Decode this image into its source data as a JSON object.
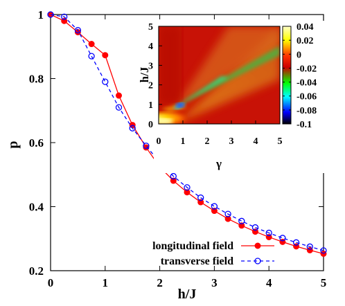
{
  "chart_data": [
    {
      "type": "line",
      "xlabel": "h/J",
      "ylabel": "p",
      "xlim": [
        0,
        5
      ],
      "ylim": [
        0.2,
        1
      ],
      "xticks": [
        "0",
        "1",
        "2",
        "3",
        "4",
        "5"
      ],
      "yticks": [
        "0.2",
        "0.4",
        "0.6",
        "0.8",
        "1"
      ],
      "legend_position": "bottom-right",
      "series": [
        {
          "name": "longitudinal field",
          "color": "#ff0000",
          "marker": "filled-circle",
          "line": "solid",
          "x": [
            0,
            0.25,
            0.5,
            0.75,
            1.0,
            1.25,
            1.5,
            1.75,
            2.0,
            2.25,
            2.5,
            2.75,
            3.0,
            3.25,
            3.5,
            3.75,
            4.0,
            4.25,
            4.5,
            4.75,
            5.0
          ],
          "y": [
            1.0,
            0.98,
            0.945,
            0.908,
            0.873,
            0.747,
            0.655,
            0.585,
            0.524,
            0.481,
            0.445,
            0.414,
            0.387,
            0.362,
            0.341,
            0.322,
            0.305,
            0.29,
            0.276,
            0.264,
            0.253
          ]
        },
        {
          "name": "transverse field",
          "color": "#0000ff",
          "marker": "open-circle",
          "line": "dashed",
          "x": [
            0,
            0.25,
            0.5,
            0.75,
            1.0,
            1.25,
            1.5,
            1.75,
            2.0,
            2.25,
            2.5,
            2.75,
            3.0,
            3.25,
            3.5,
            3.75,
            4.0,
            4.25,
            4.5,
            4.75,
            5.0
          ],
          "y": [
            1.0,
            0.993,
            0.951,
            0.87,
            0.79,
            0.71,
            0.645,
            0.59,
            0.538,
            0.495,
            0.46,
            0.428,
            0.401,
            0.377,
            0.355,
            0.335,
            0.318,
            0.302,
            0.288,
            0.275,
            0.263
          ]
        }
      ]
    },
    {
      "type": "heatmap",
      "xlabel": "γ",
      "ylabel": "h/J",
      "xlim": [
        0,
        5
      ],
      "ylim": [
        0,
        5
      ],
      "xticks": [
        "0",
        "1",
        "2",
        "3",
        "4",
        "5"
      ],
      "yticks": [
        "0",
        "1",
        "2",
        "3",
        "4",
        "5"
      ],
      "colorbar": {
        "range": [
          -0.1,
          0.04
        ],
        "ticks": [
          "0.04",
          "0.02",
          "0",
          "-0.02",
          "-0.04",
          "-0.06",
          "-0.08",
          "-0.1"
        ],
        "colormap": [
          "#000000",
          "#0000ff",
          "#00ffff",
          "#00ff00",
          "#cc0000",
          "#ff3300",
          "#ffff00",
          "#ffffc8"
        ]
      },
      "features": {
        "minimum_near": [
          0.9,
          1.0
        ],
        "green_valley": "from (0.9, 1.0) rising to upper-right, h/J ≈ γ",
        "yellow_region": "low γ, h/J below 1"
      }
    }
  ]
}
